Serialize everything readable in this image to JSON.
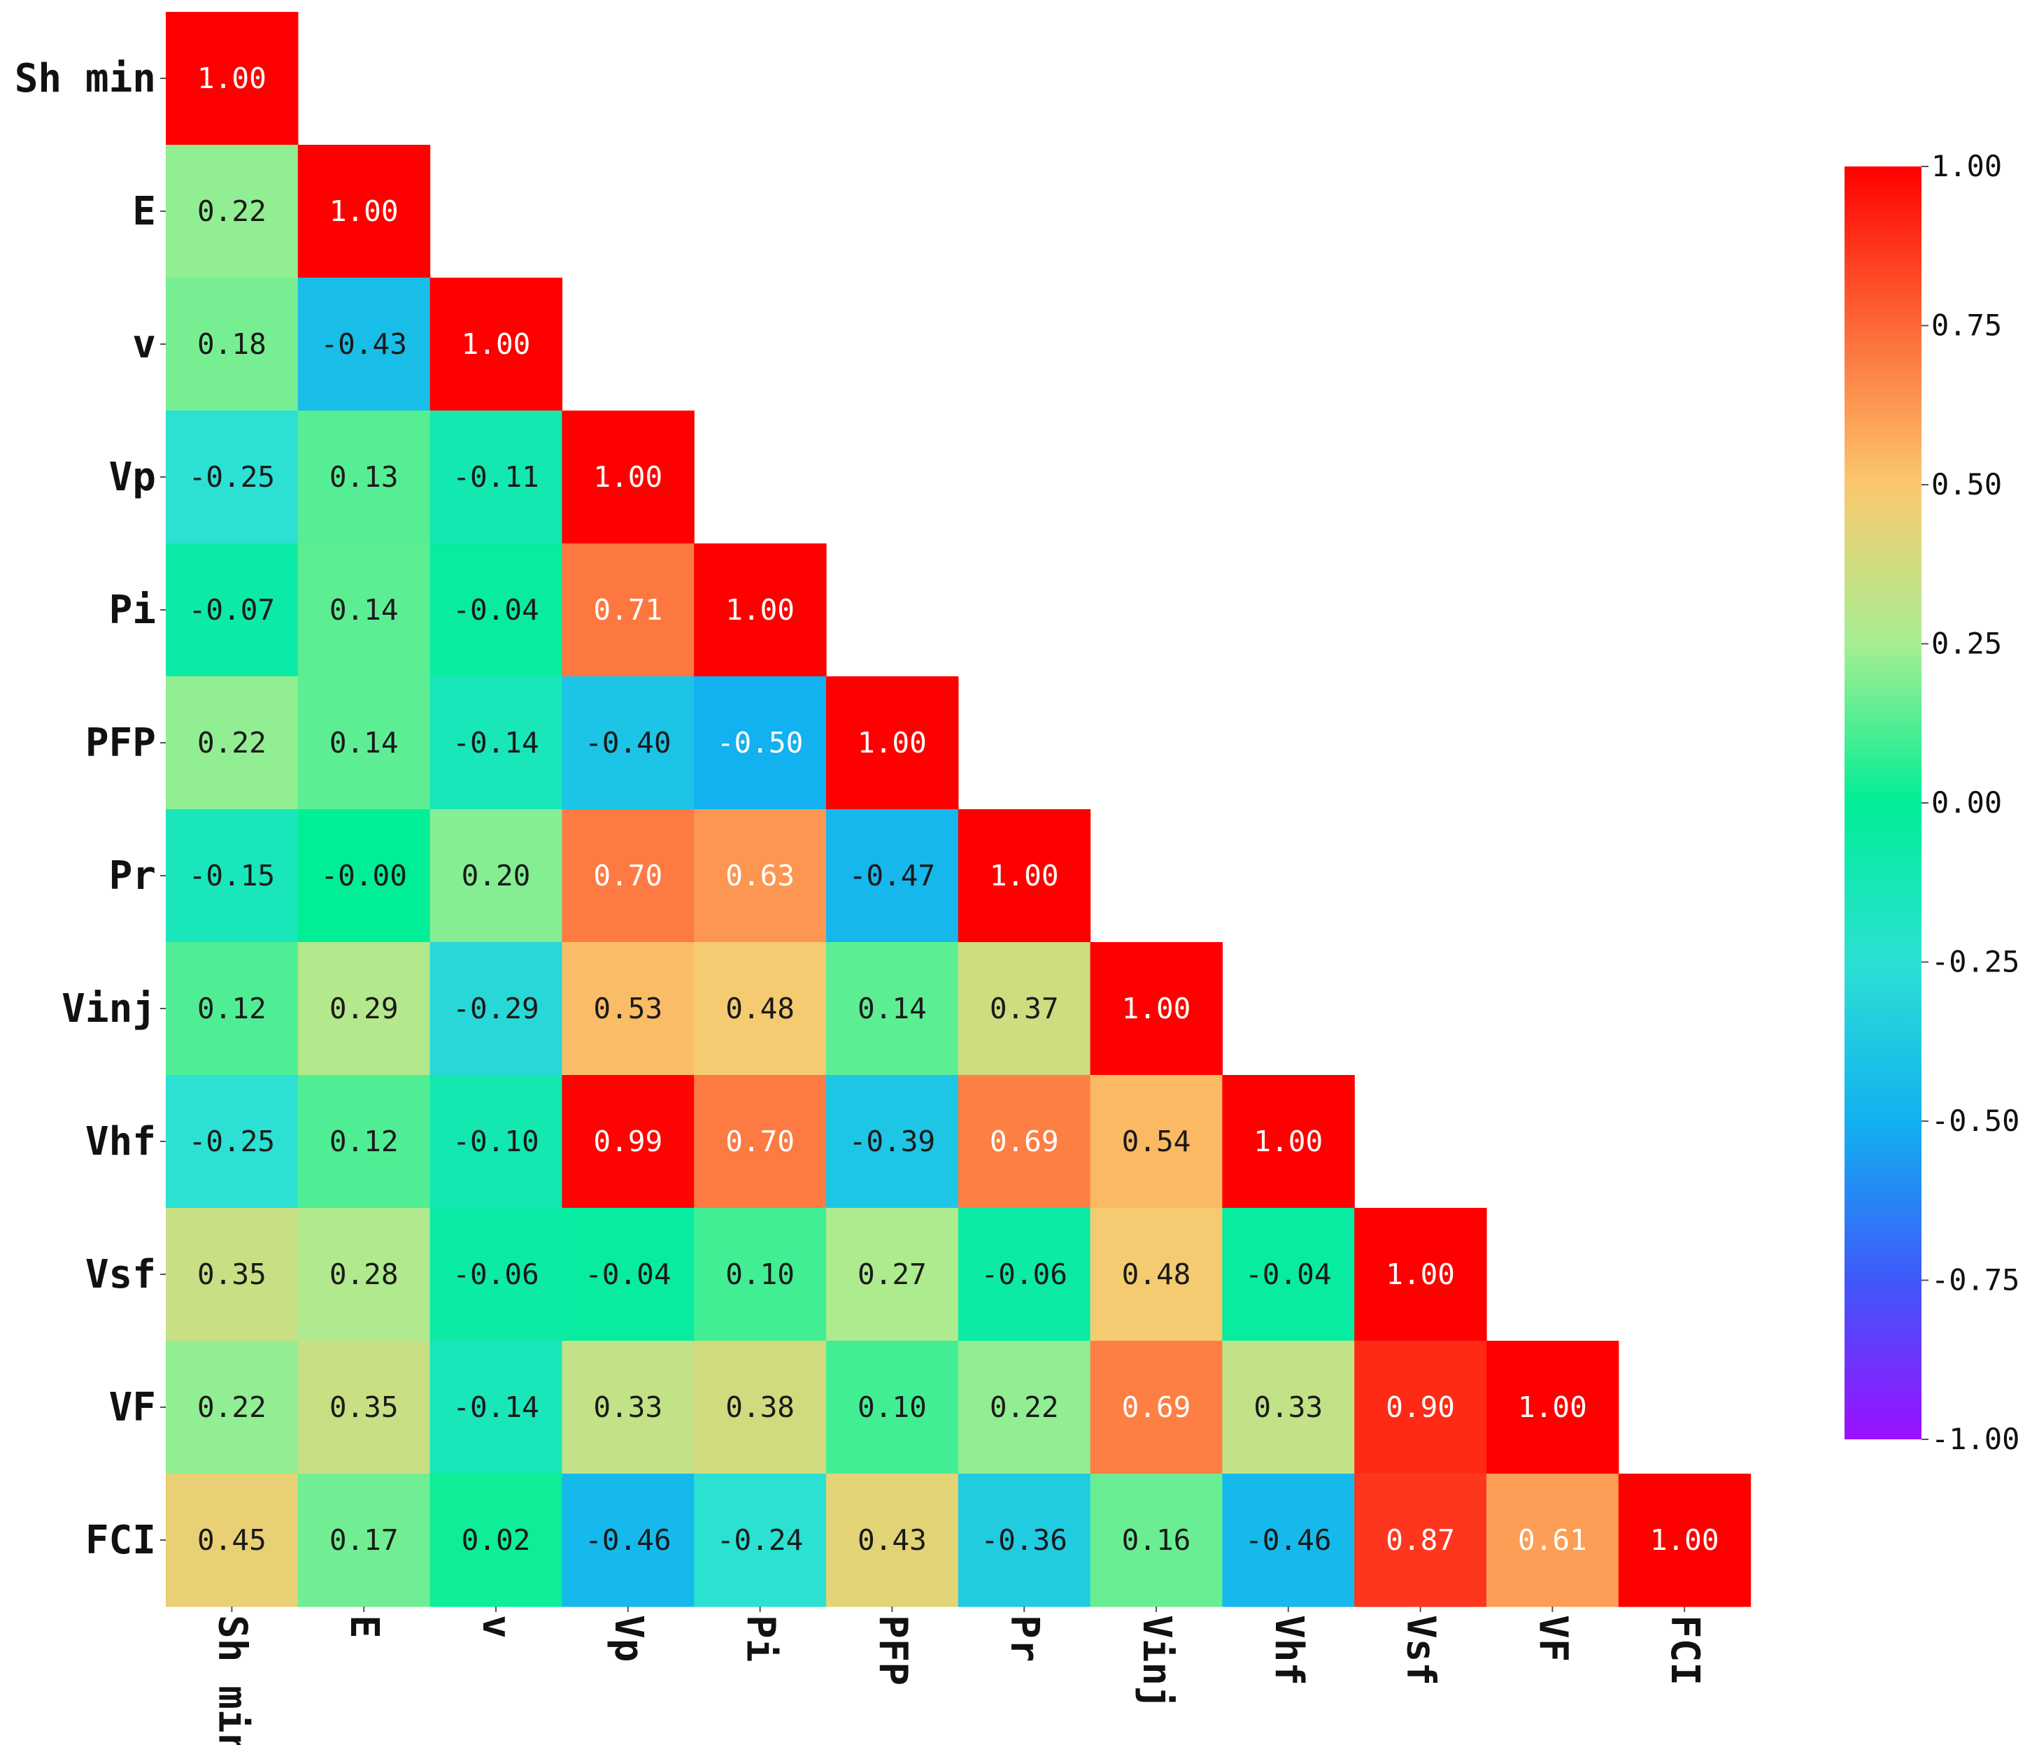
{
  "chart_data": {
    "type": "heatmap",
    "title": "",
    "shape": "lower-triangular",
    "variables": [
      "Sh min",
      "E",
      "v",
      "Vp",
      "Pi",
      "PFP",
      "Pr",
      "Vinj",
      "Vhf",
      "Vsf",
      "VF",
      "FCI"
    ],
    "values": [
      [
        1.0
      ],
      [
        0.22,
        1.0
      ],
      [
        0.18,
        -0.43,
        1.0
      ],
      [
        -0.25,
        0.13,
        -0.11,
        1.0
      ],
      [
        -0.07,
        0.14,
        -0.04,
        0.71,
        1.0
      ],
      [
        0.22,
        0.14,
        -0.14,
        -0.4,
        -0.5,
        1.0
      ],
      [
        -0.15,
        -0.0,
        0.2,
        0.7,
        0.63,
        -0.47,
        1.0
      ],
      [
        0.12,
        0.29,
        -0.29,
        0.53,
        0.48,
        0.14,
        0.37,
        1.0
      ],
      [
        -0.25,
        0.12,
        -0.1,
        0.99,
        0.7,
        -0.39,
        0.69,
        0.54,
        1.0
      ],
      [
        0.35,
        0.28,
        -0.06,
        -0.04,
        0.1,
        0.27,
        -0.06,
        0.48,
        -0.04,
        1.0
      ],
      [
        0.22,
        0.35,
        -0.14,
        0.33,
        0.38,
        0.1,
        0.22,
        0.69,
        0.33,
        0.9,
        1.0
      ],
      [
        0.45,
        0.17,
        0.02,
        -0.46,
        -0.24,
        0.43,
        -0.36,
        0.16,
        -0.46,
        0.87,
        0.61,
        1.0
      ]
    ],
    "labels": [
      [
        "1.00"
      ],
      [
        "0.22",
        "1.00"
      ],
      [
        "0.18",
        "-0.43",
        "1.00"
      ],
      [
        "-0.25",
        "0.13",
        "-0.11",
        "1.00"
      ],
      [
        "-0.07",
        "0.14",
        "-0.04",
        "0.71",
        "1.00"
      ],
      [
        "0.22",
        "0.14",
        "-0.14",
        "-0.40",
        "-0.50",
        "1.00"
      ],
      [
        "-0.15",
        "-0.00",
        "0.20",
        "0.70",
        "0.63",
        "-0.47",
        "1.00"
      ],
      [
        "0.12",
        "0.29",
        "-0.29",
        "0.53",
        "0.48",
        "0.14",
        "0.37",
        "1.00"
      ],
      [
        "-0.25",
        "0.12",
        "-0.10",
        "0.99",
        "0.70",
        "-0.39",
        "0.69",
        "0.54",
        "1.00"
      ],
      [
        "0.35",
        "0.28",
        "-0.06",
        "-0.04",
        "0.10",
        "0.27",
        "-0.06",
        "0.48",
        "-0.04",
        "1.00"
      ],
      [
        "0.22",
        "0.35",
        "-0.14",
        "0.33",
        "0.38",
        "0.10",
        "0.22",
        "0.69",
        "0.33",
        "0.90",
        "1.00"
      ],
      [
        "0.45",
        "0.17",
        "0.02",
        "-0.46",
        "-0.24",
        "0.43",
        "-0.36",
        "0.16",
        "-0.46",
        "0.87",
        "0.61",
        "1.00"
      ]
    ],
    "colorbar": {
      "range": [
        -1.0,
        1.0
      ],
      "ticks": [
        1.0,
        0.75,
        0.5,
        0.25,
        0.0,
        -0.25,
        -0.5,
        -0.75,
        -1.0
      ],
      "tick_labels": [
        "1.00",
        "0.75",
        "0.50",
        "0.25",
        "0.00",
        "-0.25",
        "-0.50",
        "-0.75",
        "-1.00"
      ],
      "colormap": "rainbow",
      "stops": [
        {
          "value": -1.0,
          "color": "#9b0fff"
        },
        {
          "value": -0.75,
          "color": "#3f58fa"
        },
        {
          "value": -0.5,
          "color": "#12b1f0"
        },
        {
          "value": -0.25,
          "color": "#2ce0d4"
        },
        {
          "value": 0.0,
          "color": "#00ee96"
        },
        {
          "value": 0.25,
          "color": "#a6ee92"
        },
        {
          "value": 0.5,
          "color": "#fbc86d"
        },
        {
          "value": 0.75,
          "color": "#fd6837"
        },
        {
          "value": 1.0,
          "color": "#ff0000"
        }
      ]
    }
  }
}
